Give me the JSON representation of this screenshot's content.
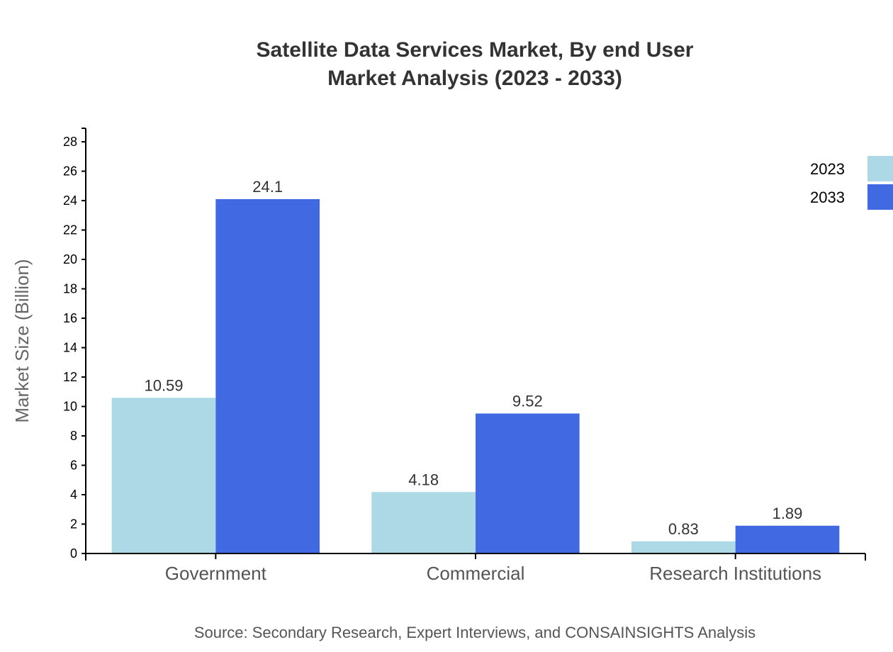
{
  "chart_data": {
    "type": "bar",
    "title": "Satellite Data Services Market, By end User",
    "subtitle": "Market Analysis (2023 - 2033)",
    "xlabel": "",
    "ylabel": "Market Size (Billion)",
    "categories": [
      "Government",
      "Commercial",
      "Research Institutions"
    ],
    "series": [
      {
        "name": "2023",
        "color": "#add8e6",
        "values": [
          10.59,
          4.18,
          0.83
        ]
      },
      {
        "name": "2033",
        "color": "#4169e1",
        "values": [
          24.1,
          9.52,
          1.89
        ]
      }
    ],
    "ylim": [
      0,
      28.92
    ],
    "yticks": [
      0,
      2,
      4,
      6,
      8,
      10,
      12,
      14,
      16,
      18,
      20,
      22,
      24,
      26,
      28
    ],
    "grid": false,
    "legend_position": "top-right",
    "source": "Source: Secondary Research, Expert Interviews, and CONSAINSIGHTS Analysis"
  }
}
